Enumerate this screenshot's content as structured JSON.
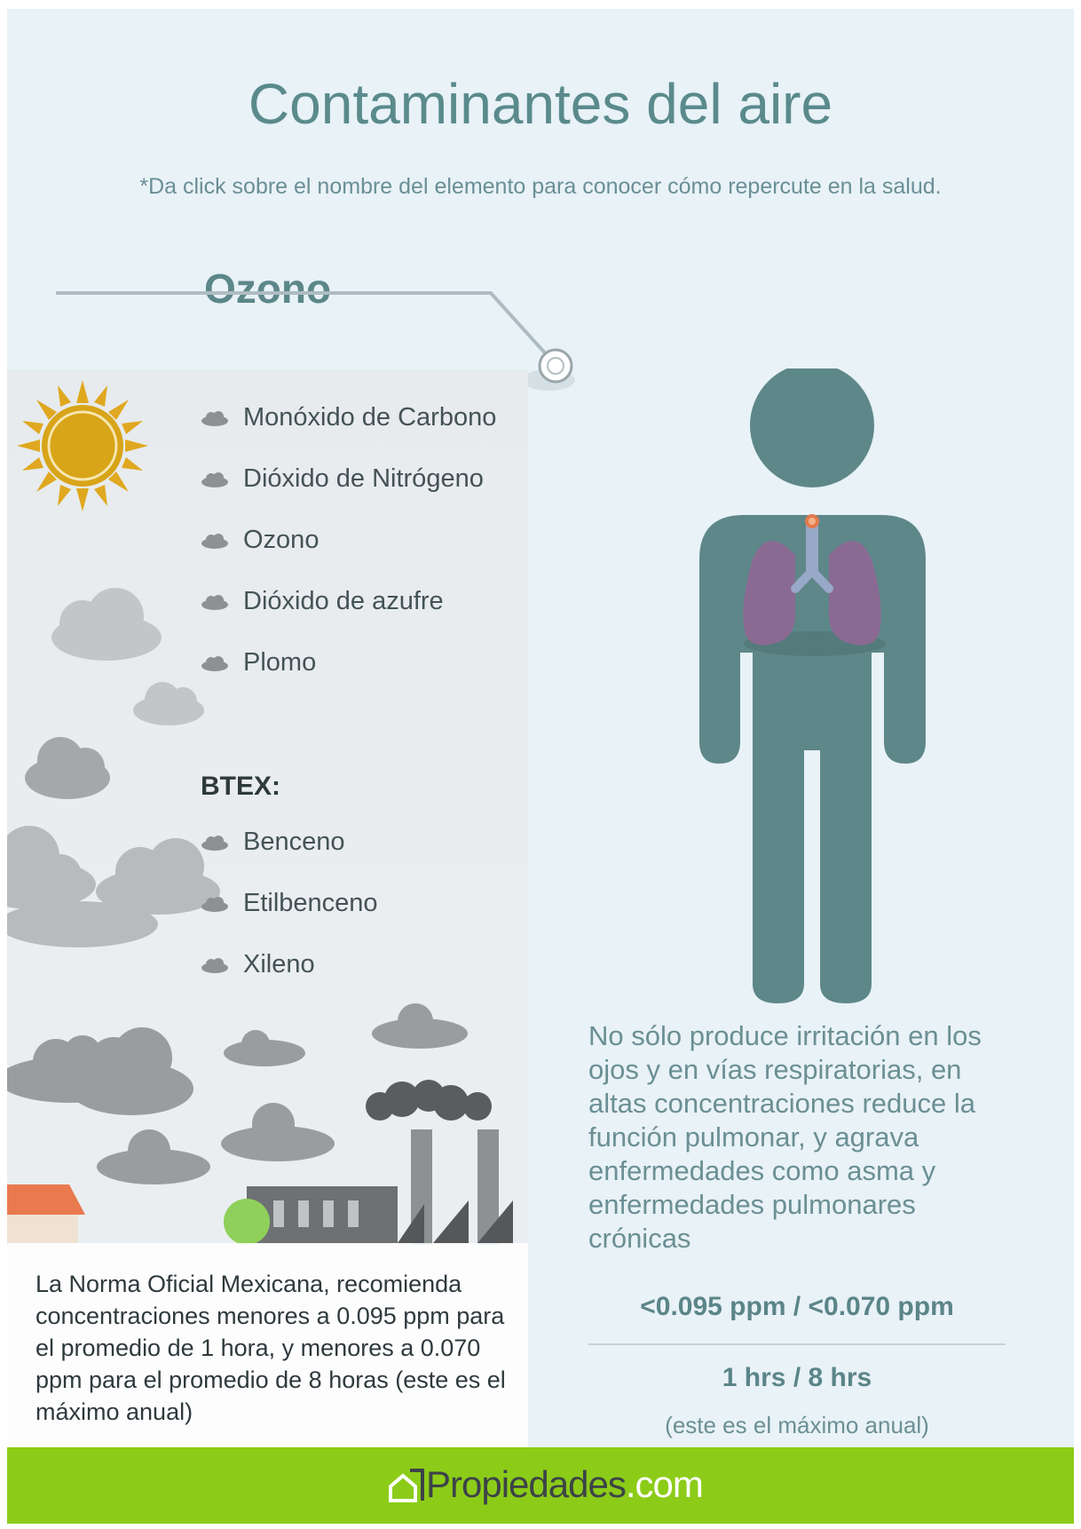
{
  "title": "Contaminantes del aire",
  "subtitle": "*Da click sobre el nombre del elemento para conocer cómo repercute en la salud.",
  "selected_pollutant": "Ozono",
  "pollutants": [
    {
      "label": "Monóxido de Carbono"
    },
    {
      "label": "Dióxido de Nitrógeno"
    },
    {
      "label": "Ozono"
    },
    {
      "label": "Dióxido de azufre"
    },
    {
      "label": "Plomo"
    }
  ],
  "btex": {
    "heading": "BTEX:",
    "items": [
      {
        "label": "Benceno"
      },
      {
        "label": "Etilbenceno"
      },
      {
        "label": "Xileno"
      }
    ]
  },
  "norm_text": "La Norma Oficial Mexicana, recomienda concentraciones menores a 0.095 ppm para el promedio de 1 hora, y menores a 0.070 ppm para el promedio de 8 horas (este es el máximo anual)",
  "description": "No sólo produce irritación en los ojos y en vías respiratorias, en altas concentraciones reduce la función pulmonar, y agrava enfermedades como asma y enfermedades pulmonares crónicas",
  "limits": "<0.095 ppm / <0.070 ppm",
  "periods": "1 hrs / 8 hrs",
  "period_note": "(este es el máximo anual)",
  "footer": {
    "logo_name": "Propiedades",
    "logo_domain": ".com"
  },
  "icons": {
    "sun": "sun-icon",
    "cloud": "cloud-icon",
    "person": "human-figure-icon",
    "lungs": "lungs-icon",
    "house": "house-logo-icon"
  },
  "colors": {
    "background": "#e8f2f7",
    "accent": "#5c8789",
    "footer": "#8ccc18",
    "lungs": "#8a6a93",
    "sun": "#e0a820"
  }
}
